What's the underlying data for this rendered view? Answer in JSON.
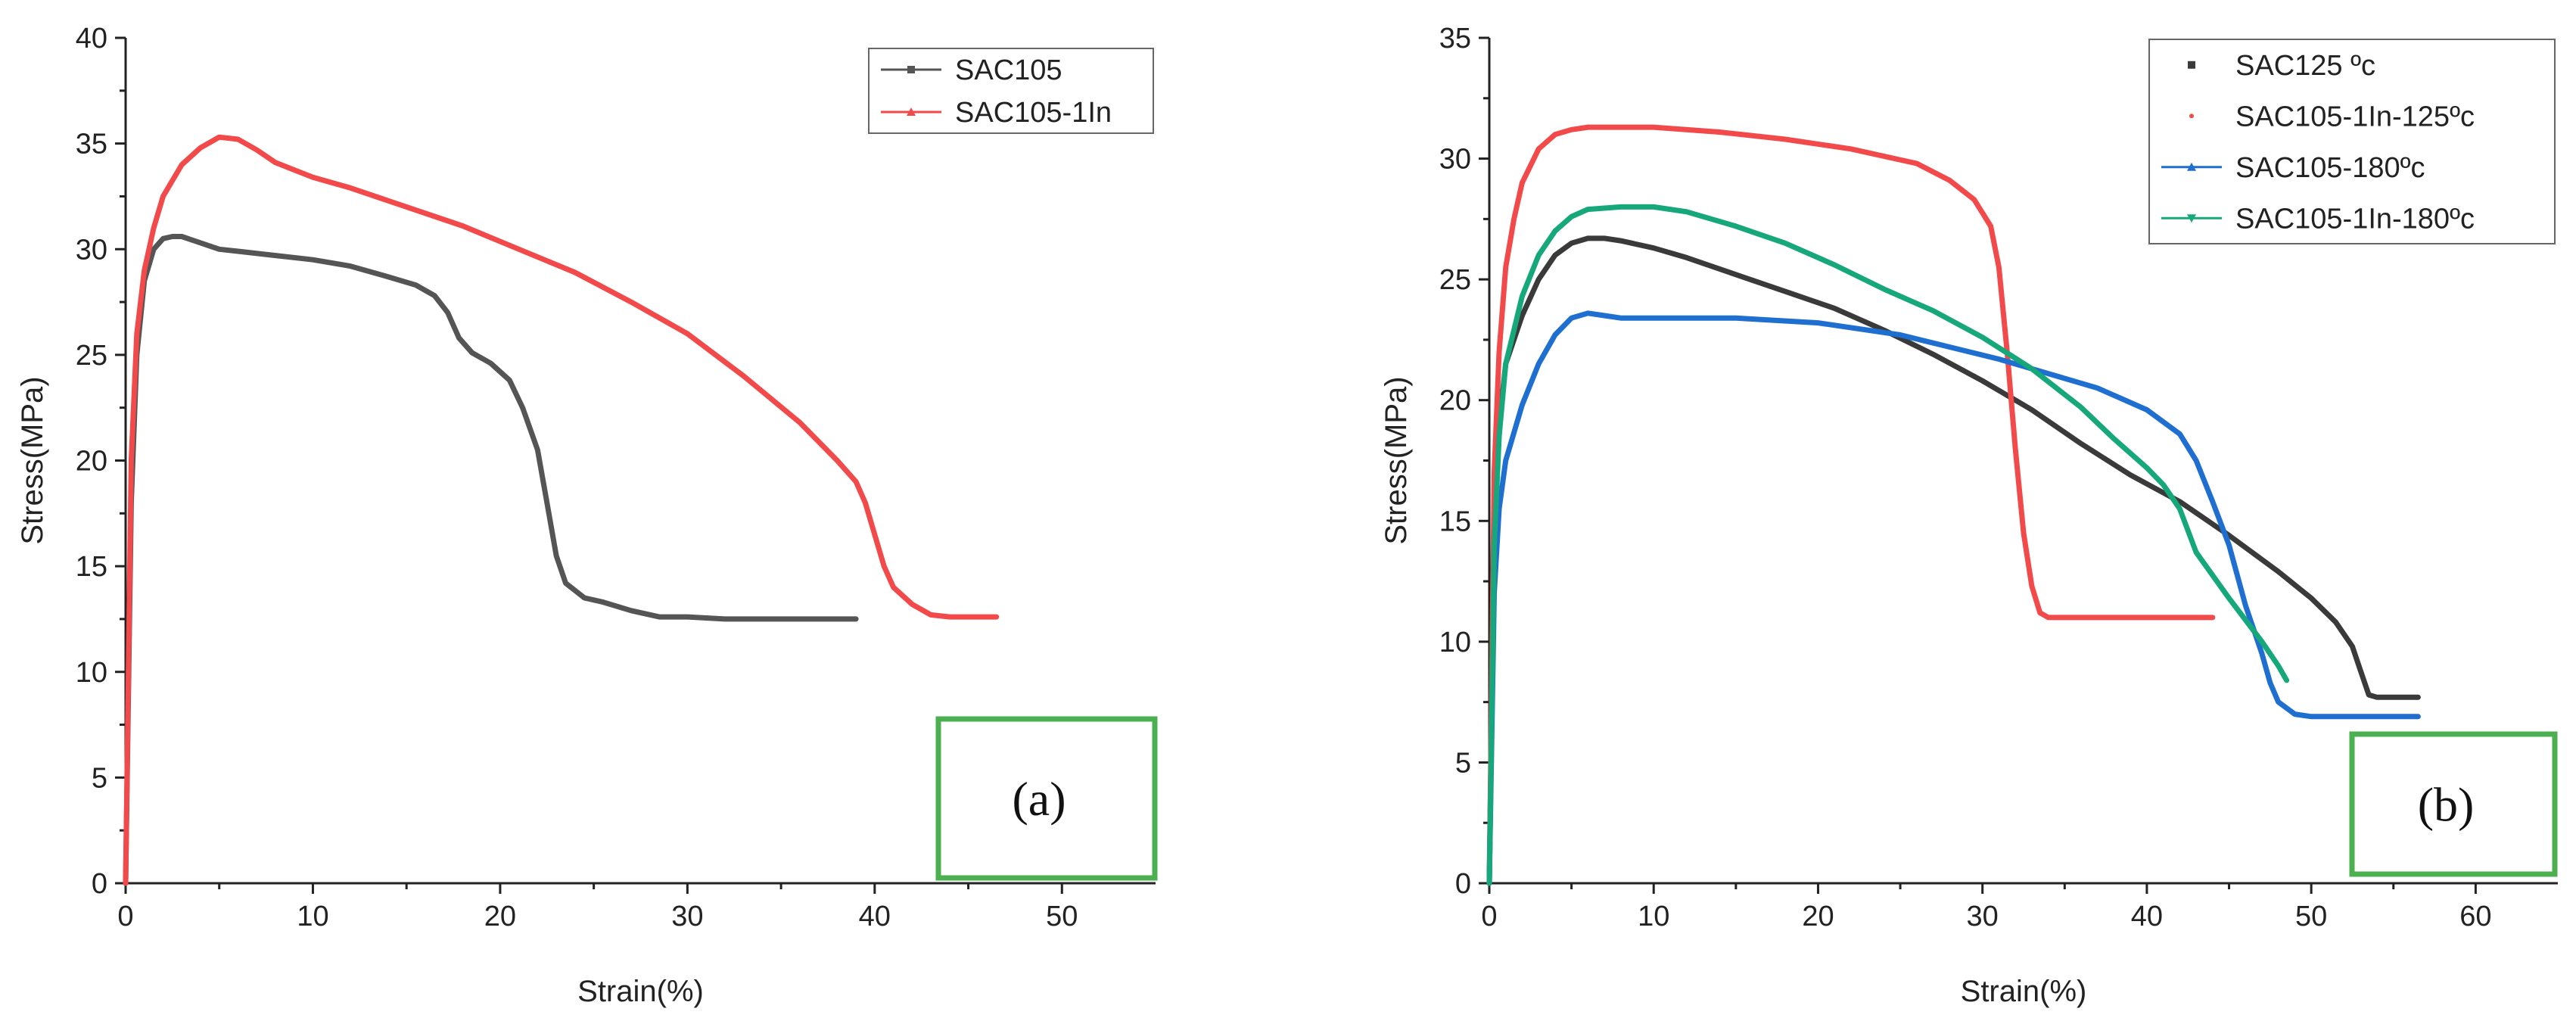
{
  "chart_data": [
    {
      "type": "line",
      "panel_label": "(a)",
      "xlabel": "Strain(%)",
      "ylabel": "Stress(MPa)",
      "xlim": [
        0,
        55
      ],
      "ylim": [
        0,
        40
      ],
      "xticks": [
        0,
        10,
        20,
        30,
        40,
        50
      ],
      "yticks": [
        0,
        5,
        10,
        15,
        20,
        25,
        30,
        35,
        40
      ],
      "legend_position": "top-right",
      "series": [
        {
          "name": "SAC105",
          "color": "#555555",
          "marker": "square",
          "x": [
            0,
            0.3,
            0.6,
            1.0,
            1.5,
            2.0,
            2.5,
            3.0,
            4.0,
            5.0,
            6.0,
            8.0,
            10.0,
            12.0,
            14.0,
            15.5,
            16.5,
            17.2,
            17.8,
            18.5,
            19.5,
            20.5,
            21.2,
            22.0,
            22.5,
            23.0,
            23.5,
            24.5,
            25.5,
            27.0,
            28.5,
            30.0,
            32.0,
            35.0,
            37.0,
            39.0
          ],
          "y": [
            0,
            18,
            25,
            28.5,
            30.0,
            30.5,
            30.6,
            30.6,
            30.3,
            30.0,
            29.9,
            29.7,
            29.5,
            29.2,
            28.7,
            28.3,
            27.8,
            27.0,
            25.8,
            25.1,
            24.6,
            23.8,
            22.5,
            20.5,
            18.0,
            15.5,
            14.2,
            13.5,
            13.3,
            12.9,
            12.6,
            12.6,
            12.5,
            12.5,
            12.5,
            12.5
          ]
        },
        {
          "name": "SAC105-1In",
          "color": "#f24a4a",
          "marker": "triangle",
          "x": [
            0,
            0.3,
            0.6,
            1.0,
            1.5,
            2.0,
            3.0,
            4.0,
            5.0,
            6.0,
            7.0,
            8.0,
            10.0,
            12.0,
            15.0,
            18.0,
            21.0,
            24.0,
            27.0,
            30.0,
            33.0,
            36.0,
            38.0,
            39.0,
            39.5,
            40.0,
            40.5,
            41.0,
            42.0,
            43.0,
            44.0,
            46.5
          ],
          "y": [
            0,
            20,
            26,
            29,
            31,
            32.5,
            34.0,
            34.8,
            35.3,
            35.2,
            34.7,
            34.1,
            33.4,
            32.9,
            32.0,
            31.1,
            30.0,
            28.9,
            27.5,
            26.0,
            24.0,
            21.8,
            20.0,
            19.0,
            18.0,
            16.5,
            15.0,
            14.0,
            13.2,
            12.7,
            12.6,
            12.6
          ]
        }
      ]
    },
    {
      "type": "line",
      "panel_label": "(b)",
      "xlabel": "Strain(%)",
      "ylabel": "Stress(MPa)",
      "xlim": [
        0,
        65
      ],
      "ylim": [
        0,
        35
      ],
      "xticks": [
        0,
        10,
        20,
        30,
        40,
        50,
        60
      ],
      "yticks": [
        0,
        5,
        10,
        15,
        20,
        25,
        30,
        35
      ],
      "legend_position": "top-right",
      "series": [
        {
          "name": "SAC125 ºc",
          "color": "#3a3a3a",
          "marker": "square",
          "x": [
            0,
            0.3,
            0.6,
            1.0,
            2.0,
            3.0,
            4.0,
            5.0,
            6.0,
            7.0,
            8.0,
            10.0,
            12.0,
            15.0,
            18.0,
            21.0,
            24.0,
            27.0,
            30.0,
            33.0,
            36.0,
            39.0,
            42.0,
            45.0,
            48.0,
            50.0,
            51.5,
            52.5,
            53.0,
            53.5,
            54.0,
            56.5
          ],
          "y": [
            0,
            15,
            19,
            21.5,
            23.5,
            25.0,
            26.0,
            26.5,
            26.7,
            26.7,
            26.6,
            26.3,
            25.9,
            25.2,
            24.5,
            23.8,
            22.9,
            21.9,
            20.8,
            19.6,
            18.2,
            16.9,
            15.8,
            14.4,
            12.9,
            11.8,
            10.8,
            9.8,
            8.8,
            7.8,
            7.7,
            7.7
          ]
        },
        {
          "name": "SAC105-1In-125ºc",
          "color": "#f24a4a",
          "marker": "none",
          "x": [
            0,
            0.3,
            0.6,
            1.0,
            1.5,
            2.0,
            3.0,
            4.0,
            5.0,
            6.0,
            8.0,
            10.0,
            14.0,
            18.0,
            22.0,
            26.0,
            28.0,
            29.5,
            30.5,
            31.0,
            31.5,
            32.0,
            32.5,
            33.0,
            33.5,
            34.0,
            36.0,
            40.0,
            44.0
          ],
          "y": [
            0,
            17,
            22,
            25.5,
            27.5,
            29.0,
            30.4,
            31.0,
            31.2,
            31.3,
            31.3,
            31.3,
            31.1,
            30.8,
            30.4,
            29.8,
            29.1,
            28.3,
            27.2,
            25.5,
            22.0,
            18.0,
            14.5,
            12.3,
            11.2,
            11.0,
            11.0,
            11.0,
            11.0
          ]
        },
        {
          "name": "SAC105-180ºc",
          "color": "#1f6fd1",
          "marker": "triangle-up",
          "x": [
            0,
            0.3,
            0.6,
            1.0,
            2.0,
            3.0,
            4.0,
            5.0,
            6.0,
            7.0,
            8.0,
            10.0,
            15.0,
            20.0,
            25.0,
            28.0,
            31.0,
            34.0,
            37.0,
            40.0,
            42.0,
            43.0,
            44.0,
            45.0,
            46.0,
            47.0,
            47.5,
            48.0,
            49.0,
            50.0,
            53.0,
            56.5
          ],
          "y": [
            0,
            12,
            15.5,
            17.5,
            19.8,
            21.5,
            22.7,
            23.4,
            23.6,
            23.5,
            23.4,
            23.4,
            23.4,
            23.2,
            22.7,
            22.2,
            21.7,
            21.1,
            20.5,
            19.6,
            18.6,
            17.5,
            15.8,
            14.0,
            11.5,
            9.5,
            8.3,
            7.5,
            7.0,
            6.9,
            6.9,
            6.9
          ]
        },
        {
          "name": "SAC105-1In-180ºc",
          "color": "#16a87a",
          "marker": "triangle-down",
          "x": [
            0,
            0.3,
            0.6,
            1.0,
            2.0,
            3.0,
            4.0,
            5.0,
            6.0,
            8.0,
            10.0,
            12.0,
            15.0,
            18.0,
            21.0,
            24.0,
            27.0,
            30.0,
            33.0,
            36.0,
            38.0,
            40.0,
            41.0,
            42.0,
            43.0,
            45.0,
            47.0,
            48.0,
            48.5
          ],
          "y": [
            0,
            14,
            18.5,
            21.5,
            24.3,
            26.0,
            27.0,
            27.6,
            27.9,
            28.0,
            28.0,
            27.8,
            27.2,
            26.5,
            25.6,
            24.6,
            23.7,
            22.6,
            21.3,
            19.7,
            18.4,
            17.2,
            16.5,
            15.5,
            13.7,
            11.8,
            10.0,
            9.0,
            8.4
          ]
        }
      ]
    }
  ]
}
